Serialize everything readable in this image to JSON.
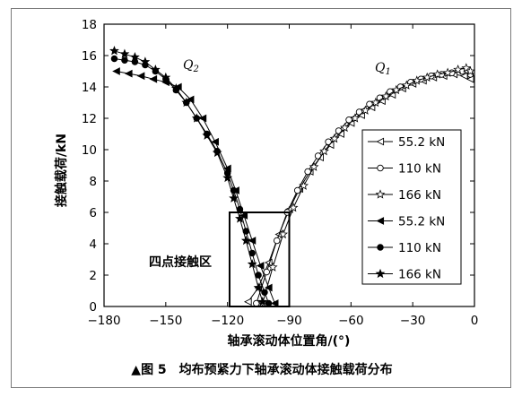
{
  "chart_data": {
    "type": "line",
    "xlabel": "轴承滚动体位置角/(°)",
    "ylabel": "接触载荷/kN",
    "xlim": [
      -180,
      0
    ],
    "ylim": [
      0,
      18
    ],
    "xticks": [
      -180,
      -150,
      -120,
      -90,
      -60,
      -30,
      0
    ],
    "yticks": [
      0,
      2,
      4,
      6,
      8,
      10,
      12,
      14,
      16,
      18
    ],
    "xtick_labels": [
      "−180",
      "−150",
      "−120",
      "−90",
      "−60",
      "−30",
      "0"
    ],
    "ytick_labels": [
      "0",
      "2",
      "4",
      "6",
      "8",
      "10",
      "12",
      "14",
      "16",
      "18"
    ],
    "grid": false,
    "legend_position": "right",
    "annotations": {
      "q2": "Q",
      "q2_sub": "2",
      "q1": "Q",
      "q1_sub": "1",
      "region": "四点接触区"
    },
    "region_box": {
      "x": [
        -119,
        -90
      ],
      "y": [
        0,
        6
      ]
    },
    "caption": "▲图 5　均布预紧力下轴承滚动体接触载荷分布",
    "series": [
      {
        "name": "55.2 kN",
        "group": "Q1",
        "marker": "tri-open",
        "x": [
          -110,
          -105,
          -100,
          -95,
          -90,
          -85,
          -80,
          -75,
          -70,
          -65,
          -60,
          -55,
          -50,
          -45,
          -40,
          -35,
          -30,
          -25,
          -20,
          -15,
          -10,
          -5,
          -2
        ],
        "y": [
          0.3,
          1.2,
          2.8,
          4.6,
          6.2,
          7.5,
          8.6,
          9.5,
          10.3,
          11.0,
          11.7,
          12.2,
          12.7,
          13.1,
          13.5,
          13.9,
          14.2,
          14.4,
          14.6,
          14.7,
          14.8,
          14.7,
          14.5
        ]
      },
      {
        "name": "110 kN",
        "group": "Q1",
        "marker": "circle-open",
        "x": [
          -106,
          -101,
          -96,
          -91,
          -86,
          -81,
          -76,
          -71,
          -66,
          -61,
          -56,
          -51,
          -46,
          -41,
          -36,
          -31,
          -26,
          -21,
          -16,
          -11,
          -6,
          -2
        ],
        "y": [
          0.2,
          2.2,
          4.2,
          6.0,
          7.4,
          8.6,
          9.6,
          10.5,
          11.2,
          11.9,
          12.4,
          12.9,
          13.3,
          13.7,
          14.0,
          14.3,
          14.5,
          14.7,
          14.8,
          14.9,
          15.0,
          14.8
        ]
      },
      {
        "name": "166 kN",
        "group": "Q1",
        "marker": "star-open",
        "x": [
          -103,
          -98,
          -93,
          -88,
          -83,
          -78,
          -73,
          -68,
          -63,
          -58,
          -53,
          -48,
          -43,
          -38,
          -33,
          -28,
          -23,
          -18,
          -13,
          -8,
          -4,
          -2
        ],
        "y": [
          0.2,
          2.5,
          4.6,
          6.3,
          7.7,
          8.9,
          9.9,
          10.7,
          11.4,
          12.0,
          12.5,
          13.0,
          13.4,
          13.8,
          14.1,
          14.4,
          14.6,
          14.8,
          14.9,
          15.1,
          15.2,
          15.0
        ]
      },
      {
        "name": "55.2 kN",
        "group": "Q2",
        "marker": "tri-filled",
        "x": [
          -174,
          -168,
          -162,
          -156,
          -150,
          -144,
          -138,
          -132,
          -126,
          -120,
          -116,
          -112,
          -108,
          -104,
          -100,
          -97
        ],
        "y": [
          15.0,
          14.85,
          14.7,
          14.5,
          14.3,
          14.0,
          13.2,
          12.0,
          10.5,
          8.8,
          7.4,
          5.8,
          4.2,
          2.6,
          1.2,
          0.2
        ]
      },
      {
        "name": "110 kN",
        "group": "Q2",
        "marker": "circle-filled",
        "x": [
          -175,
          -170,
          -165,
          -160,
          -155,
          -150,
          -145,
          -140,
          -135,
          -130,
          -125,
          -120,
          -117,
          -114,
          -111,
          -108,
          -105,
          -102,
          -100
        ],
        "y": [
          15.8,
          15.7,
          15.6,
          15.4,
          15.0,
          14.5,
          13.8,
          13.0,
          12.0,
          11.0,
          9.9,
          8.5,
          7.4,
          6.2,
          4.8,
          3.4,
          2.0,
          0.9,
          0.2
        ]
      },
      {
        "name": "166 kN",
        "group": "Q2",
        "marker": "star-filled",
        "x": [
          -175,
          -170,
          -165,
          -160,
          -155,
          -150,
          -145,
          -140,
          -135,
          -130,
          -125,
          -120,
          -117,
          -114,
          -111,
          -108,
          -105,
          -103
        ],
        "y": [
          16.3,
          16.1,
          15.9,
          15.6,
          15.1,
          14.6,
          13.9,
          13.0,
          12.0,
          10.9,
          9.8,
          8.2,
          6.9,
          5.6,
          4.2,
          2.7,
          1.2,
          0.3
        ]
      }
    ]
  }
}
